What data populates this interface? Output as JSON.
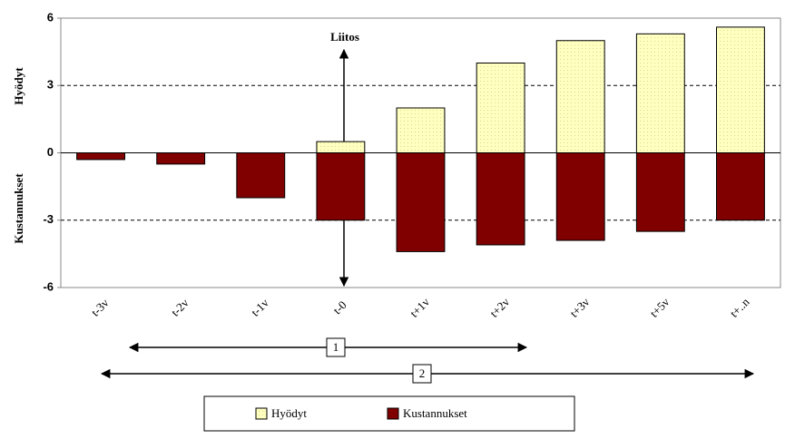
{
  "chart_data": {
    "type": "bar",
    "ylabel_top": "Hyödyt",
    "ylabel_bottom": "Kustannukset",
    "categories": [
      "t-3v",
      "t-2v",
      "t-1v",
      "t-0",
      "t+1v",
      "t+2v",
      "t+3v",
      "t+5v",
      "t+..n"
    ],
    "series": [
      {
        "name": "Hyödyt",
        "color": "#ffffc0",
        "values": [
          null,
          null,
          null,
          0.5,
          2,
          4,
          5,
          5.3,
          5.6
        ]
      },
      {
        "name": "Kustannukset",
        "color": "#800000",
        "values": [
          -0.3,
          -0.5,
          -2,
          -3,
          -4.4,
          -4.1,
          -3.9,
          -3.5,
          -3
        ]
      }
    ],
    "ylim": [
      -6,
      6
    ],
    "yticks": [
      -6,
      -3,
      0,
      3,
      6
    ],
    "grid": true,
    "legend": "bottom",
    "annotations": [
      "Liitos",
      "1",
      "2"
    ]
  }
}
